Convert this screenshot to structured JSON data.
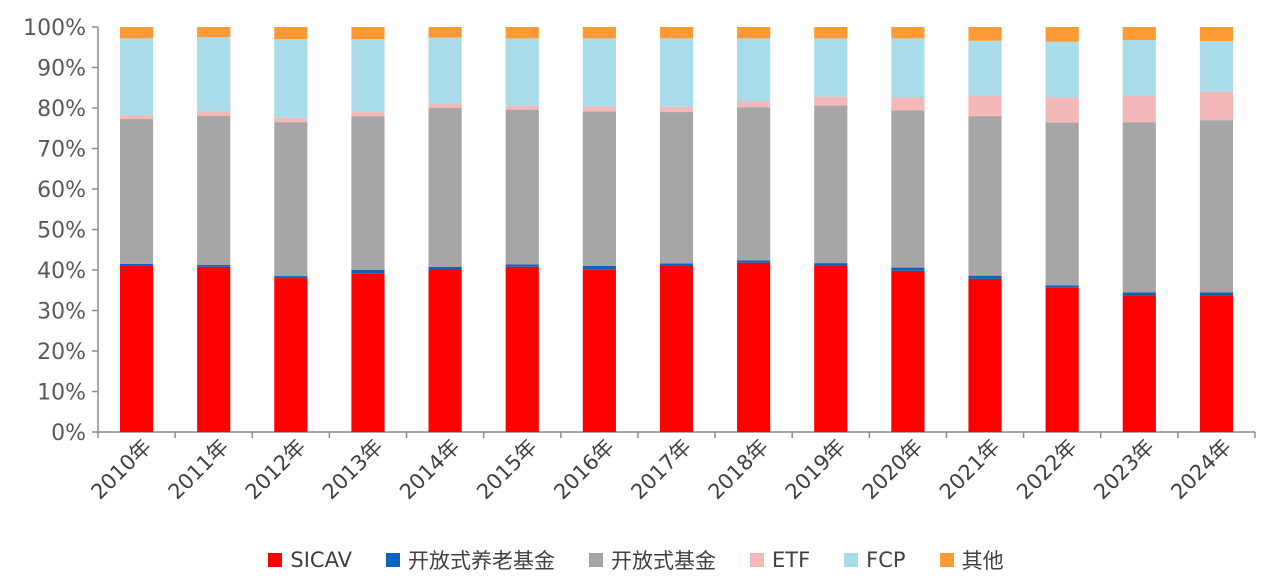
{
  "chart_data": {
    "type": "bar",
    "stacked": true,
    "categories": [
      "2010年",
      "2011年",
      "2012年",
      "2013年",
      "2014年",
      "2015年",
      "2016年",
      "2017年",
      "2018年",
      "2019年",
      "2020年",
      "2021年",
      "2022年",
      "2023年",
      "2024年"
    ],
    "series": [
      {
        "name": "SICAV",
        "color": "#ff0000",
        "values": [
          41.0,
          40.8,
          38.0,
          39.2,
          40.0,
          40.8,
          40.2,
          41.0,
          41.8,
          41.0,
          39.8,
          37.8,
          35.6,
          33.8,
          33.8
        ]
      },
      {
        "name": "开放式养老基金",
        "color": "#0b63c1",
        "values": [
          0.5,
          0.5,
          0.5,
          0.8,
          0.8,
          0.6,
          0.8,
          0.6,
          0.6,
          0.7,
          0.8,
          0.8,
          0.6,
          0.7,
          0.7
        ]
      },
      {
        "name": "开放式基金",
        "color": "#a6a6a6",
        "values": [
          35.8,
          36.8,
          38.0,
          38.0,
          39.2,
          38.2,
          38.2,
          37.4,
          37.8,
          38.9,
          38.8,
          39.4,
          40.2,
          42.0,
          42.5
        ]
      },
      {
        "name": "ETF",
        "color": "#f4b8b8",
        "values": [
          0.9,
          1.0,
          1.1,
          1.0,
          1.0,
          1.0,
          1.2,
          1.3,
          1.4,
          2.2,
          3.2,
          5.0,
          6.2,
          6.5,
          7.0
        ]
      },
      {
        "name": "FCP",
        "color": "#a9dbe8",
        "values": [
          19.0,
          18.4,
          19.4,
          18.0,
          16.4,
          16.6,
          16.8,
          16.9,
          15.6,
          14.4,
          14.6,
          13.6,
          13.8,
          13.8,
          12.5
        ]
      },
      {
        "name": "其他",
        "color": "#ff9933",
        "values": [
          2.8,
          2.5,
          3.0,
          3.0,
          2.6,
          2.8,
          2.8,
          2.8,
          2.8,
          2.8,
          2.8,
          3.4,
          3.6,
          3.2,
          3.5
        ]
      }
    ],
    "ylim": [
      0,
      100
    ],
    "yticks": [
      "0%",
      "10%",
      "20%",
      "30%",
      "40%",
      "50%",
      "60%",
      "70%",
      "80%",
      "90%",
      "100%"
    ],
    "grid": false,
    "legend_position": "bottom"
  }
}
